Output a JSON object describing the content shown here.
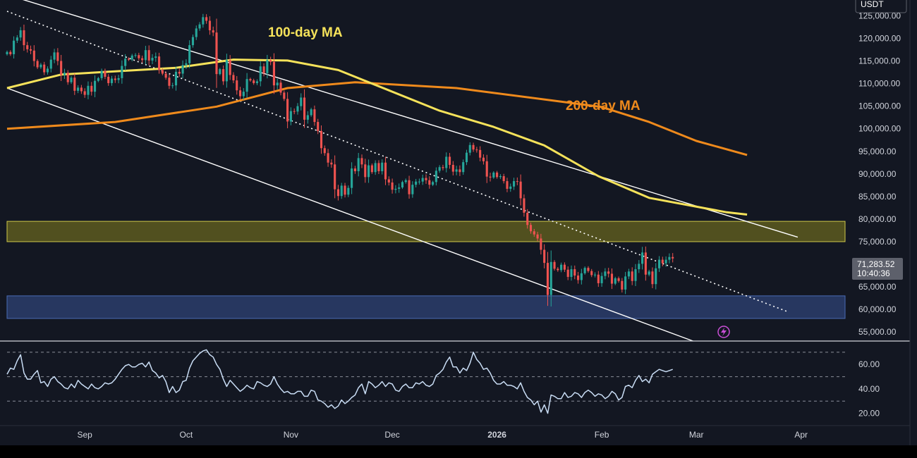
{
  "chart_data": [
    {
      "type": "candlestick",
      "instrument_currency": "USDT",
      "annotations": {
        "ma100_label": "100-day MA",
        "ma200_label": "200-day MA"
      },
      "last_price": "71,283.52",
      "countdown": "10:40:36",
      "x_axis": {
        "labels": [
          {
            "date": "2025-09-01",
            "label": "Sep"
          },
          {
            "date": "2025-10-01",
            "label": "Oct"
          },
          {
            "date": "2025-11-01",
            "label": "Nov"
          },
          {
            "date": "2025-12-01",
            "label": "Dec"
          },
          {
            "date": "2026-01-01",
            "label": "2026"
          },
          {
            "date": "2026-02-01",
            "label": "Feb"
          },
          {
            "date": "2026-03-01",
            "label": "Mar"
          },
          {
            "date": "2026-04-01",
            "label": "Apr"
          }
        ],
        "range": [
          "2025-08-09",
          "2026-04-14"
        ]
      },
      "y_axis": {
        "range": [
          53000,
          128500
        ],
        "tick_labels": [
          "55,000.00",
          "60,000.00",
          "65,000.00",
          "70,000.00",
          "75,000.00",
          "80,000.00",
          "85,000.00",
          "90,000.00",
          "95,000.00",
          "100,000.00",
          "105,000.00",
          "110,000.00",
          "115,000.00",
          "120,000.00",
          "125,000.00"
        ]
      },
      "colors": {
        "up": "#26a69a",
        "down": "#ef5350",
        "ma100": "#f5e25a",
        "ma200": "#ef8a1c",
        "resistance_zone": "#5d5b1f",
        "support_zone": "#2c3d6b"
      },
      "zones": [
        {
          "name": "resistance",
          "from": 75000,
          "to": 79500
        },
        {
          "name": "support",
          "from": 58000,
          "to": 63000
        }
      ],
      "trendlines": [
        {
          "name": "upper-channel",
          "style": "solid",
          "points": [
            [
              "2025-08-01",
              131500
            ],
            [
              "2026-03-31",
              76000
            ]
          ]
        },
        {
          "name": "lower-channel",
          "style": "solid",
          "points": [
            [
              "2025-08-09",
              109000
            ],
            [
              "2026-02-28",
              53000
            ]
          ]
        },
        {
          "name": "mid-channel",
          "style": "dotted",
          "points": [
            [
              "2025-08-09",
              126000
            ],
            [
              "2026-03-28",
              59500
            ]
          ]
        }
      ],
      "ma100": {
        "name": "100-day MA",
        "dates": [
          "2025-08-09",
          "2025-08-25",
          "2025-09-10",
          "2025-09-28",
          "2025-10-15",
          "2025-10-31",
          "2025-11-15",
          "2025-11-30",
          "2025-12-15",
          "2025-12-31",
          "2026-01-15",
          "2026-01-31",
          "2026-02-15",
          "2026-03-10",
          "2026-03-16"
        ],
        "values": [
          109000,
          112000,
          112700,
          113500,
          115300,
          115100,
          113000,
          108500,
          104000,
          100400,
          96300,
          89500,
          84700,
          81500,
          81000
        ]
      },
      "ma200": {
        "name": "200-day MA",
        "dates": [
          "2025-08-09",
          "2025-09-10",
          "2025-10-10",
          "2025-10-31",
          "2025-11-20",
          "2025-12-20",
          "2026-01-20",
          "2026-02-01",
          "2026-02-15",
          "2026-03-01",
          "2026-03-16"
        ],
        "values": [
          100000,
          101500,
          104900,
          109000,
          110300,
          109000,
          106000,
          104800,
          101500,
          97300,
          94200
        ]
      },
      "ohlc_daily_close": {
        "start_date": "2025-08-09",
        "closes": [
          117000,
          116500,
          119500,
          120200,
          121800,
          118500,
          117600,
          117300,
          115000,
          113600,
          114200,
          112500,
          113300,
          115300,
          116900,
          115000,
          111900,
          112400,
          110300,
          111300,
          108400,
          109100,
          108300,
          107500,
          109500,
          108200,
          110600,
          111200,
          112800,
          111500,
          110100,
          111100,
          110800,
          111200,
          113900,
          115500,
          115300,
          116200,
          116300,
          115600,
          115200,
          117400,
          115100,
          115700,
          116000,
          113000,
          112200,
          111300,
          109500,
          109600,
          112600,
          112200,
          114100,
          114500,
          118500,
          120300,
          122200,
          123100,
          124700,
          123900,
          121800,
          121300,
          112100,
          113200,
          110500,
          115200,
          111900,
          110700,
          108500,
          107200,
          108200,
          111000,
          110700,
          110100,
          110500,
          113800,
          112300,
          115200,
          114800,
          109600,
          110200,
          108000,
          106600,
          101600,
          103900,
          103800,
          105000,
          106900,
          102000,
          103000,
          104300,
          101500,
          99500,
          95700,
          94600,
          92500,
          92100,
          86600,
          85100,
          87400,
          85400,
          86900,
          91200,
          90600,
          93500,
          92100,
          89300,
          91900,
          90400,
          92400,
          90600,
          92500,
          88800,
          88100,
          86500,
          86700,
          87000,
          88200,
          88600,
          85500,
          87600,
          88300,
          88300,
          89100,
          88600,
          87600,
          88200,
          90700,
          91500,
          91300,
          93800,
          92000,
          90500,
          91000,
          90400,
          92600,
          94700,
          96400,
          95400,
          95300,
          93600,
          92800,
          89400,
          89200,
          90300,
          89300,
          89500,
          88400,
          86700,
          87200,
          88400,
          88300,
          84600,
          81400,
          78700,
          77300,
          76600,
          75700,
          73200,
          70300,
          63200,
          70500,
          69000,
          68700,
          69900,
          68800,
          67200,
          68900,
          67500,
          66500,
          68000,
          69200,
          68500,
          67600,
          67700,
          65800,
          67400,
          68400,
          67900,
          65700,
          66900,
          66300,
          64400,
          67300,
          68400,
          66300,
          68900,
          70100,
          72600,
          67700,
          68400,
          65600,
          69100,
          71000,
          70200,
          71000,
          71600,
          71283.52
        ]
      },
      "rsi": {
        "y_range": [
          10,
          78
        ],
        "tick_labels": [
          "20.00",
          "40.00",
          "60.00"
        ],
        "levels": [
          30,
          50,
          70
        ],
        "start_date": "2025-08-09",
        "values": [
          52,
          57,
          56,
          63,
          68,
          53,
          48,
          48,
          52,
          55,
          45,
          46,
          42,
          48,
          50,
          46,
          44,
          41,
          40,
          44,
          41,
          47,
          44,
          42,
          40,
          44,
          41,
          40,
          42,
          45,
          44,
          45,
          48,
          52,
          56,
          59,
          60,
          58,
          58,
          60,
          61,
          58,
          62,
          55,
          53,
          49,
          51,
          46,
          37,
          42,
          37,
          39,
          46,
          47,
          57,
          63,
          66,
          69,
          71,
          72,
          68,
          66,
          60,
          56,
          48,
          42,
          47,
          44,
          41,
          38,
          40,
          43,
          41,
          40,
          46,
          45,
          43,
          42,
          44,
          50,
          44,
          40,
          37,
          38,
          36,
          36,
          38,
          38,
          34,
          34,
          39,
          38,
          31,
          30,
          28,
          25,
          27,
          24,
          26,
          31,
          28,
          30,
          33,
          35,
          41,
          44,
          36,
          46,
          44,
          41,
          43,
          46,
          42,
          45,
          44,
          39,
          38,
          42,
          44,
          41,
          41,
          45,
          44,
          46,
          43,
          42,
          44,
          51,
          53,
          56,
          62,
          66,
          58,
          58,
          53,
          57,
          55,
          61,
          70,
          64,
          61,
          56,
          57,
          53,
          47,
          44,
          44,
          46,
          43,
          43,
          42,
          40,
          45,
          38,
          33,
          31,
          27,
          30,
          21,
          27,
          20,
          35,
          34,
          32,
          32,
          37,
          33,
          34,
          37,
          36,
          33,
          37,
          39,
          37,
          34,
          36,
          35,
          32,
          34,
          38,
          36,
          31,
          33,
          42,
          43,
          41,
          47,
          51,
          46,
          48,
          45,
          52,
          54,
          56,
          55,
          54,
          55,
          56
        ]
      }
    }
  ]
}
